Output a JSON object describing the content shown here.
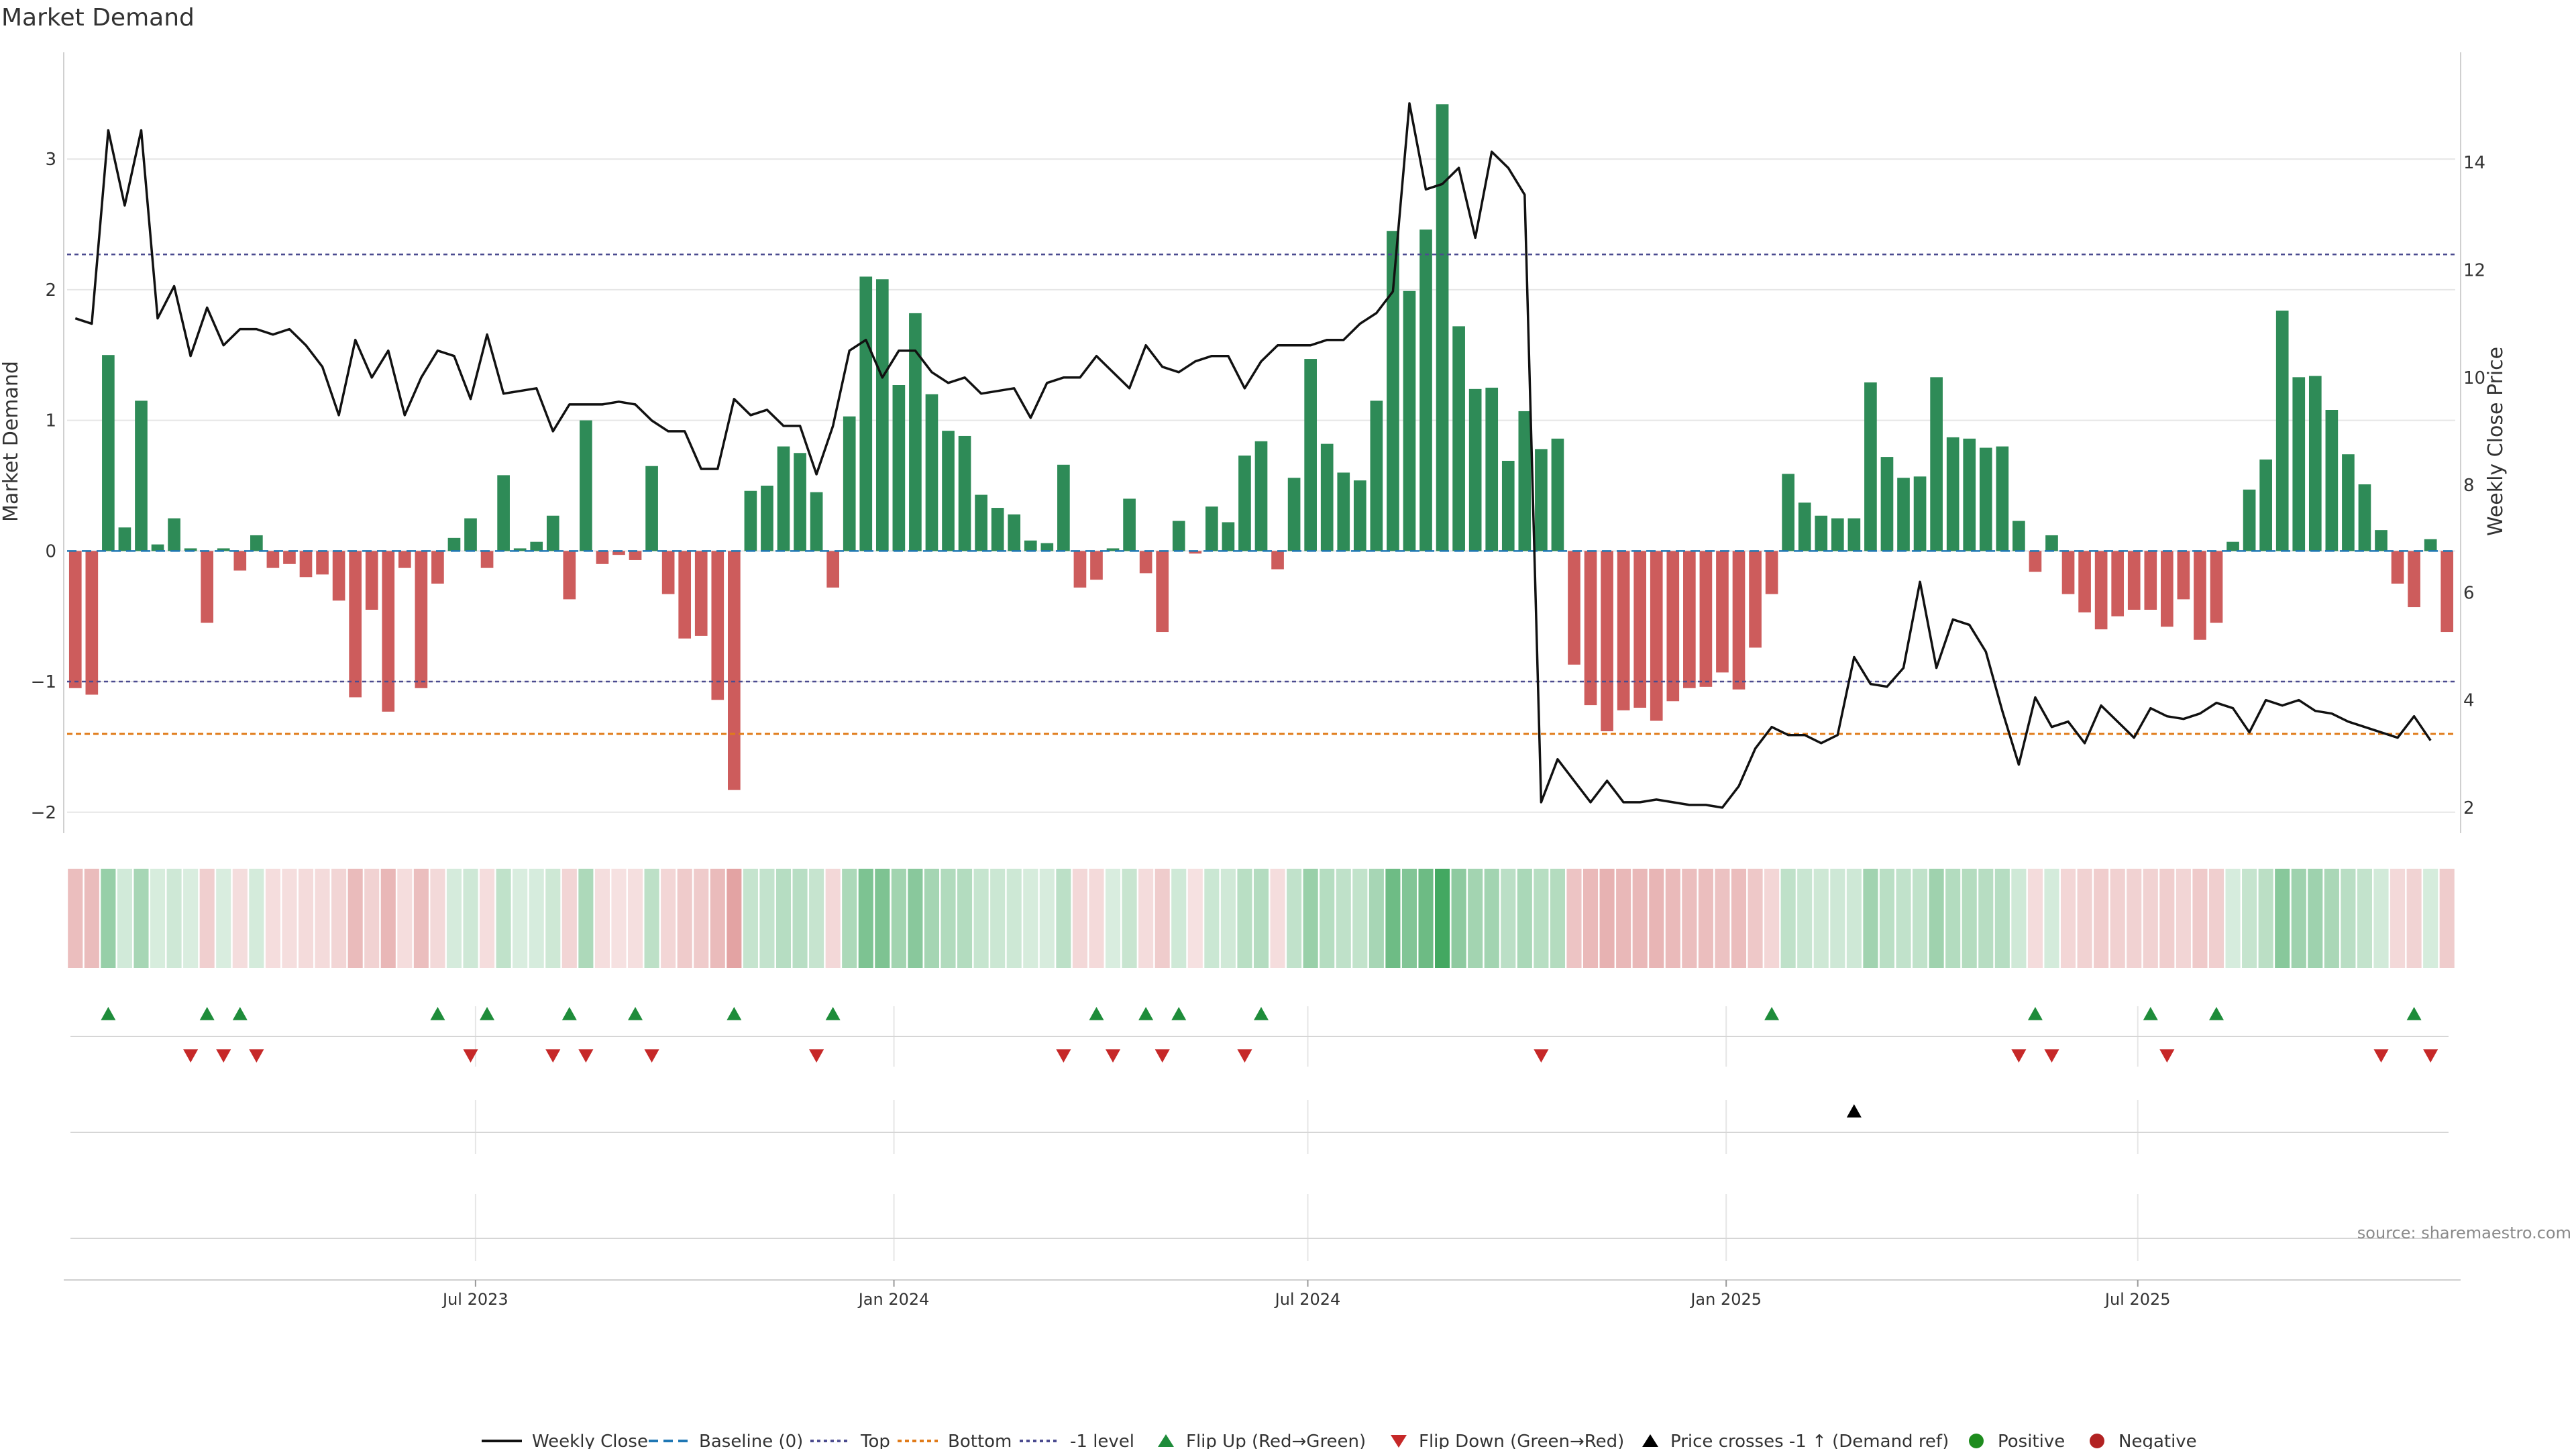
{
  "title": "Market Demand",
  "source": "source: sharemaestro.com",
  "colors": {
    "positive": "#2e8b57",
    "negative": "#cd5c5c",
    "price_line": "#111111",
    "top_line": "#4b4b8f",
    "bottom_line": "#e07b1a",
    "minus1_line": "#4b4b8f",
    "baseline": "#1f77b4",
    "flip_up": "#1e8c3a",
    "flip_down": "#c62828",
    "cross_marker": "#000000",
    "positive_dot": "#1e8c1e",
    "negative_dot": "#b22222",
    "grid": "#e6e6e6"
  },
  "chart_data": {
    "type": "bar",
    "title": "Market Demand",
    "ylabel": "Market Demand",
    "y2label": "Weekly Close Price",
    "ylim": [
      -2.15,
      3.55
    ],
    "y2lim": [
      1.55,
      15.4
    ],
    "yticks": [
      "3",
      "2",
      "1",
      "0",
      "−1",
      "−2"
    ],
    "ytick_values": [
      3,
      2,
      1,
      0,
      -1,
      -2
    ],
    "y2ticks": [
      "14",
      "12",
      "10",
      "8",
      "6",
      "4",
      "2"
    ],
    "y2tick_values": [
      14,
      12,
      10,
      8,
      6,
      4,
      2
    ],
    "x_start": "2023-01-06",
    "x_end": "2025-11-14",
    "xticks": [
      "Jul 2023",
      "Jan 2024",
      "Jul 2024",
      "Jan 2025",
      "Jul 2025"
    ],
    "xtick_dates": [
      "2023-07-01",
      "2024-01-01",
      "2024-07-01",
      "2025-01-01",
      "2025-07-01"
    ],
    "reference_lines": {
      "top": 2.27,
      "bottom": -1.4,
      "minus_one": -1.0,
      "baseline": 0
    },
    "demand": [
      -1.05,
      -1.1,
      1.5,
      0.18,
      1.15,
      0.05,
      0.25,
      0.02,
      -0.55,
      0.02,
      -0.15,
      0.12,
      -0.13,
      -0.1,
      -0.2,
      -0.18,
      -0.38,
      -1.12,
      -0.45,
      -1.23,
      -0.13,
      -1.05,
      -0.25,
      0.1,
      0.25,
      -0.13,
      0.58,
      0.02,
      0.07,
      0.27,
      -0.37,
      1.0,
      -0.1,
      -0.03,
      -0.07,
      0.65,
      -0.33,
      -0.67,
      -0.65,
      -1.14,
      -1.83,
      0.46,
      0.5,
      0.8,
      0.75,
      0.45,
      -0.28,
      1.03,
      2.1,
      2.08,
      1.27,
      1.82,
      1.2,
      0.92,
      0.88,
      0.43,
      0.33,
      0.28,
      0.08,
      0.06,
      0.66,
      -0.28,
      -0.22,
      0.02,
      0.4,
      -0.17,
      -0.62,
      0.23,
      -0.02,
      0.34,
      0.22,
      0.73,
      0.84,
      -0.14,
      0.56,
      1.47,
      0.82,
      0.6,
      0.54,
      1.15,
      2.45,
      1.99,
      2.46,
      3.42,
      1.72,
      1.24,
      1.25,
      0.69,
      1.07,
      0.78,
      0.86,
      -0.87,
      -1.18,
      -1.38,
      -1.22,
      -1.2,
      -1.3,
      -1.15,
      -1.05,
      -1.04,
      -0.93,
      -1.06,
      -0.74,
      -0.33,
      0.59,
      0.37,
      0.27,
      0.25,
      0.25,
      1.29,
      0.72,
      0.56,
      0.57,
      1.33,
      0.87,
      0.86,
      0.79,
      0.8,
      0.23,
      -0.16,
      0.12,
      -0.33,
      -0.47,
      -0.6,
      -0.5,
      -0.45,
      -0.45,
      -0.58,
      -0.37,
      -0.68,
      -0.55,
      0.07,
      0.47,
      0.7,
      1.84,
      1.33,
      1.34,
      1.08,
      0.74,
      0.51,
      0.16,
      -0.25,
      -0.43,
      0.09,
      -0.62
    ],
    "weekly_close": [
      11.1,
      11.0,
      14.6,
      13.2,
      14.6,
      11.1,
      11.7,
      10.4,
      11.3,
      10.6,
      10.9,
      10.9,
      10.8,
      10.9,
      10.6,
      10.2,
      9.3,
      10.7,
      10.0,
      10.5,
      9.3,
      10.0,
      10.5,
      10.4,
      9.6,
      10.8,
      9.7,
      9.75,
      9.8,
      9.0,
      9.5,
      9.5,
      9.5,
      9.55,
      9.5,
      9.2,
      9.0,
      9.0,
      8.3,
      8.3,
      9.6,
      9.3,
      9.4,
      9.1,
      9.1,
      8.2,
      9.1,
      10.5,
      10.7,
      10.0,
      10.5,
      10.5,
      10.1,
      9.9,
      10.0,
      9.7,
      9.75,
      9.8,
      9.25,
      9.9,
      10.0,
      10.0,
      10.4,
      10.1,
      9.8,
      10.6,
      10.2,
      10.1,
      10.3,
      10.4,
      10.4,
      9.8,
      10.3,
      10.6,
      10.6,
      10.6,
      10.7,
      10.7,
      11.0,
      11.2,
      11.6,
      15.1,
      13.5,
      13.6,
      13.9,
      12.6,
      14.2,
      13.9,
      13.4,
      2.1,
      2.9,
      2.5,
      2.1,
      2.5,
      2.1,
      2.1,
      2.15,
      2.1,
      2.05,
      2.05,
      2.0,
      2.4,
      3.1,
      3.5,
      3.35,
      3.35,
      3.2,
      3.35,
      4.8,
      4.3,
      4.25,
      4.6,
      6.2,
      4.6,
      5.5,
      5.4,
      4.9,
      3.8,
      2.8,
      4.05,
      3.5,
      3.6,
      3.2,
      3.9,
      3.6,
      3.3,
      3.85,
      3.7,
      3.65,
      3.75,
      3.95,
      3.85,
      3.4,
      4.0,
      3.9,
      4.0,
      3.8,
      3.75,
      3.6,
      3.5,
      3.4,
      3.3,
      3.7,
      3.25
    ],
    "flip_up_weeks": [
      2,
      8,
      10,
      22,
      25,
      30,
      34,
      40,
      46,
      62,
      65,
      67,
      72,
      103,
      119,
      126,
      130,
      142
    ],
    "flip_down_weeks": [
      7,
      9,
      11,
      24,
      29,
      31,
      35,
      45,
      60,
      63,
      66,
      71,
      89,
      118,
      120,
      127,
      140,
      143
    ],
    "price_cross_weeks": [
      108
    ],
    "legend": [
      "Weekly Close",
      "Baseline (0)",
      "Top",
      "Bottom",
      "-1 level",
      "Flip Up (Red→Green)",
      "Flip Down (Green→Red)",
      "Price crosses -1 ↑ (Demand ref)",
      "Positive",
      "Negative"
    ]
  }
}
